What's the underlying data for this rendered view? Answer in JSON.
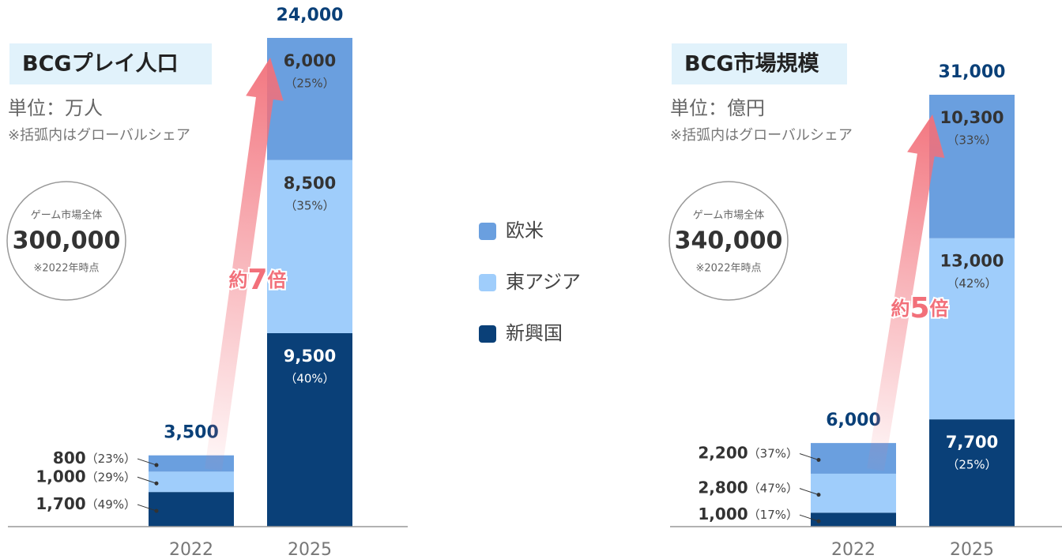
{
  "chart_data": [
    {
      "type": "bar",
      "stacked": true,
      "title": "BCGプレイ人口",
      "unit": "単位：万人",
      "note": "※括弧内はグローバルシェア",
      "market": {
        "label": "ゲーム市場全体",
        "value": "300,000",
        "note": "※2022年時点"
      },
      "arrow_label": [
        "約",
        "7",
        "倍"
      ],
      "categories": [
        "2022",
        "2025"
      ],
      "ylim": [
        0,
        24000
      ],
      "totals": [
        3500,
        24000
      ],
      "total_labels": [
        "3,500",
        "24,000"
      ],
      "series": [
        {
          "name": "欧米",
          "color": "#6a9fdf",
          "values": [
            800,
            6000
          ],
          "value_labels": [
            "800",
            "6,000"
          ],
          "share_labels": [
            "（23%）",
            "（25%）"
          ]
        },
        {
          "name": "東アジア",
          "color": "#9fcdfb",
          "values": [
            1000,
            8500
          ],
          "value_labels": [
            "1,000",
            "8,500"
          ],
          "share_labels": [
            "（29%）",
            "（35%）"
          ]
        },
        {
          "name": "新興国",
          "color": "#0a4078",
          "values": [
            1700,
            9500
          ],
          "value_labels": [
            "1,700",
            "9,500"
          ],
          "share_labels": [
            "（49%）",
            "（40%）"
          ]
        }
      ]
    },
    {
      "type": "bar",
      "stacked": true,
      "title": "BCG市場規模",
      "unit": "単位：億円",
      "note": "※括弧内はグローバルシェア",
      "market": {
        "label": "ゲーム市場全体",
        "value": "340,000",
        "note": "※2022年時点"
      },
      "arrow_label": [
        "約",
        "5",
        "倍"
      ],
      "categories": [
        "2022",
        "2025"
      ],
      "ylim": [
        0,
        31000
      ],
      "totals": [
        6000,
        31000
      ],
      "total_labels": [
        "6,000",
        "31,000"
      ],
      "series": [
        {
          "color": "#6a9fdf",
          "values": [
            2200,
            10300
          ],
          "value_labels": [
            "2,200",
            "10,300"
          ],
          "share_labels": [
            "（37%）",
            "（33%）"
          ]
        },
        {
          "color": "#9fcdfb",
          "values": [
            2800,
            13000
          ],
          "value_labels": [
            "2,800",
            "13,000"
          ],
          "share_labels": [
            "（47%）",
            "（42%）"
          ]
        },
        {
          "color": "#0a4078",
          "values": [
            1000,
            7700
          ],
          "value_labels": [
            "1,000",
            "7,700"
          ],
          "share_labels": [
            "（17%）",
            "（25%）"
          ]
        }
      ]
    }
  ]
}
